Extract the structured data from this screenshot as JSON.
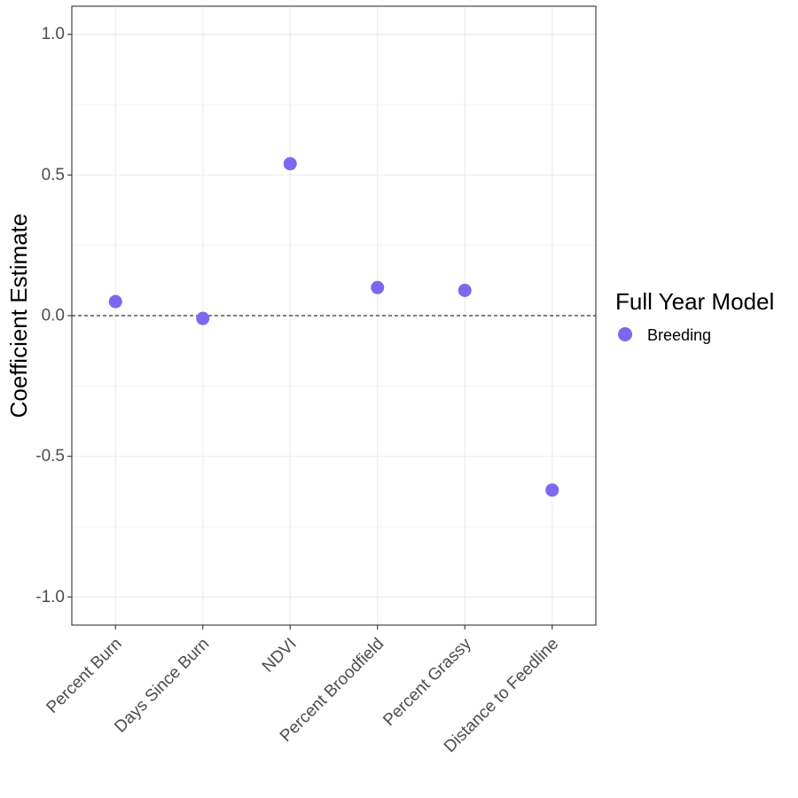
{
  "chart_data": {
    "type": "scatter",
    "categories": [
      "Percent Burn",
      "Days Since Burn",
      "NDVI",
      "Percent Broodfield",
      "Percent Grassy",
      "Distance to Feedline"
    ],
    "series": [
      {
        "name": "Breeding",
        "color": "#7B68EE",
        "values": [
          0.05,
          -0.01,
          0.54,
          0.1,
          0.09,
          -0.62
        ]
      }
    ],
    "ylabel": "Coefficient Estimate",
    "xlabel": "",
    "ylim": [
      -1.1,
      1.1
    ],
    "yticks": [
      -1.0,
      -0.5,
      0.0,
      0.5,
      1.0
    ],
    "ytick_labels": [
      "-1.0",
      "-0.5",
      "0.0",
      "0.5",
      "1.0"
    ],
    "reference_line": {
      "y": 0,
      "style": "dashed"
    },
    "legend": {
      "title": "Full Year Model",
      "position": "right"
    },
    "grid": true
  }
}
